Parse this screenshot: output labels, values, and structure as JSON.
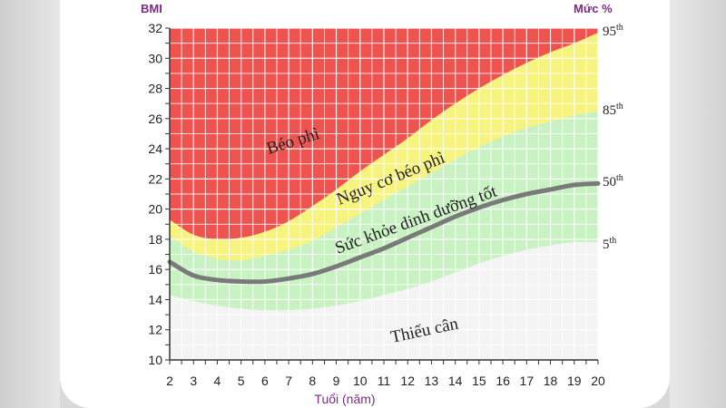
{
  "chart_data": {
    "type": "area",
    "y_axis_title": "BMI",
    "x_axis_title": "Tuổi (năm)",
    "right_axis_title": "Mức %",
    "x_ticks": [
      "2",
      "3",
      "4",
      "5",
      "6",
      "7",
      "8",
      "9",
      "10",
      "11",
      "12",
      "13",
      "14",
      "15",
      "16",
      "17",
      "18",
      "19",
      "20"
    ],
    "y_ticks": [
      "10",
      "12",
      "14",
      "16",
      "18",
      "20",
      "22",
      "24",
      "26",
      "28",
      "30",
      "32"
    ],
    "xlim": [
      2,
      20
    ],
    "ylim": [
      10,
      32
    ],
    "ages": [
      2,
      3,
      4,
      5,
      6,
      7,
      8,
      9,
      10,
      11,
      12,
      13,
      14,
      15,
      16,
      17,
      18,
      19,
      20
    ],
    "series": [
      {
        "name": "5th",
        "values": [
          14.3,
          13.9,
          13.6,
          13.4,
          13.3,
          13.3,
          13.4,
          13.6,
          13.9,
          14.3,
          14.7,
          15.2,
          15.8,
          16.4,
          16.9,
          17.3,
          17.6,
          17.8,
          17.8
        ]
      },
      {
        "name": "50th",
        "values": [
          16.5,
          15.6,
          15.3,
          15.2,
          15.2,
          15.4,
          15.7,
          16.2,
          16.8,
          17.4,
          18.1,
          18.8,
          19.5,
          20.1,
          20.6,
          21.0,
          21.3,
          21.6,
          21.7
        ]
      },
      {
        "name": "85th",
        "values": [
          18.2,
          17.2,
          16.7,
          16.6,
          16.9,
          17.3,
          17.9,
          18.8,
          19.7,
          20.6,
          21.5,
          22.4,
          23.3,
          24.1,
          24.8,
          25.4,
          25.8,
          26.2,
          26.5
        ]
      },
      {
        "name": "95th",
        "values": [
          19.3,
          18.3,
          18.0,
          18.1,
          18.5,
          19.2,
          20.2,
          21.3,
          22.5,
          23.6,
          24.7,
          25.9,
          27.0,
          28.0,
          28.9,
          29.7,
          30.4,
          31.0,
          31.7
        ]
      }
    ],
    "zones": {
      "obese": "Béo phì",
      "overweight": "Nguy cơ béo phì",
      "healthy": "Sức khỏe dinh dưỡng tốt",
      "underweight": "Thiếu cân"
    },
    "percentile_labels": [
      {
        "num": "95",
        "sup": "th"
      },
      {
        "num": "85",
        "sup": "th"
      },
      {
        "num": "50",
        "sup": "th"
      },
      {
        "num": "5",
        "sup": "th"
      }
    ],
    "colors": {
      "obese": "#ef5350",
      "overweight": "#f7f37f",
      "healthy": "#c8f2c2",
      "underweight": "#f4f4f4",
      "median_line": "#7a7a7a",
      "grid": "#ffffff",
      "axis_title": "#7b2a86"
    }
  }
}
